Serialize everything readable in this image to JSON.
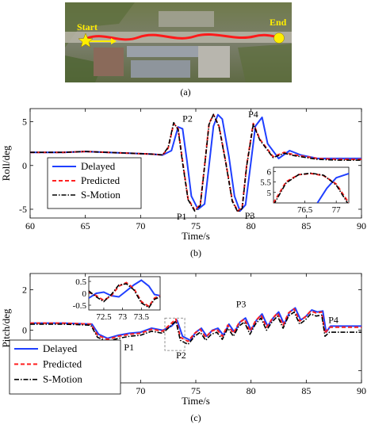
{
  "colors": {
    "delayed": "#1f3fff",
    "predicted": "#ff2020",
    "s_motion": "#000000",
    "route": "#ff1a1a",
    "marker": "#ffee00"
  },
  "panel_a": {
    "caption": "(a)",
    "start_label": "Start",
    "end_label": "End"
  },
  "chart_data": [
    {
      "type": "line",
      "caption": "(b)",
      "xlabel": "Time/s",
      "ylabel": "Roll/deg",
      "xlim": [
        60,
        90
      ],
      "ylim": [
        -6,
        6.5
      ],
      "xticks": [
        "60",
        "65",
        "70",
        "75",
        "80",
        "85",
        "90"
      ],
      "yticks": [
        "-5",
        "0",
        "5"
      ],
      "legend": {
        "placement": "lower-left",
        "entries": [
          "Delayed",
          "Predicted",
          "S-Motion"
        ]
      },
      "annotations": [
        "P1",
        "P2",
        "P3",
        "P4"
      ],
      "annotation_points": [
        [
          73.7,
          -5.1
        ],
        [
          75.8,
          5.0
        ],
        [
          79.0,
          -5.2
        ],
        [
          79.6,
          5.3
        ]
      ],
      "series": [
        {
          "name": "Delayed",
          "x": [
            60,
            63,
            65,
            67,
            69,
            71,
            72,
            72.8,
            73.4,
            73.8,
            74.2,
            74.6,
            75.2,
            75.8,
            76.2,
            76.6,
            77.0,
            77.4,
            78.0,
            78.5,
            79.0,
            79.5,
            80.0,
            80.4,
            81,
            81.5,
            82.5,
            83.5,
            84.5,
            86,
            88,
            90
          ],
          "y": [
            1.5,
            1.5,
            1.6,
            1.5,
            1.4,
            1.3,
            1.2,
            1.7,
            4.4,
            4.2,
            0.5,
            -3.5,
            -5.0,
            -4.4,
            0,
            4.5,
            5.8,
            5.3,
            1.0,
            -3.5,
            -5.2,
            -4.5,
            0.5,
            4.5,
            5.5,
            2.5,
            0.8,
            1.7,
            1.2,
            0.8,
            0.8,
            0.8
          ]
        },
        {
          "name": "Predicted",
          "x": [
            60,
            63,
            65,
            67,
            69,
            71,
            72,
            72.5,
            73.0,
            73.4,
            73.8,
            74.3,
            74.9,
            75.4,
            75.8,
            76.2,
            76.6,
            77.1,
            77.7,
            78.3,
            78.8,
            79.2,
            79.6,
            80.2,
            80.8,
            82,
            83,
            84,
            86,
            88,
            90
          ],
          "y": [
            1.5,
            1.5,
            1.6,
            1.5,
            1.4,
            1.3,
            1.2,
            2.0,
            4.8,
            4.2,
            0.5,
            -3.8,
            -5.1,
            -4.5,
            0,
            4.8,
            5.8,
            4.5,
            0.5,
            -4.0,
            -5.2,
            -4.8,
            0,
            4.8,
            3.0,
            1.0,
            1.5,
            1.2,
            0.8,
            0.7,
            0.7
          ]
        },
        {
          "name": "S-Motion",
          "x": [
            60,
            63,
            65,
            67,
            69,
            71,
            72,
            72.5,
            73.0,
            73.4,
            73.8,
            74.3,
            74.9,
            75.4,
            75.8,
            76.2,
            76.6,
            77.1,
            77.7,
            78.3,
            78.8,
            79.2,
            79.6,
            80.2,
            80.8,
            82,
            83,
            84,
            86,
            88,
            90
          ],
          "y": [
            1.5,
            1.5,
            1.6,
            1.5,
            1.4,
            1.3,
            1.2,
            2.1,
            4.9,
            4.1,
            0.3,
            -3.9,
            -5.2,
            -4.6,
            -0.1,
            4.7,
            5.85,
            4.4,
            0.4,
            -4.1,
            -5.3,
            -4.9,
            -0.1,
            4.7,
            2.9,
            0.9,
            1.4,
            1.1,
            0.7,
            0.6,
            0.6
          ]
        }
      ],
      "inset": {
        "xlim": [
          76.0,
          77.2
        ],
        "ylim": [
          4.5,
          6.2
        ],
        "xticks": [
          "76.5",
          "77"
        ],
        "yticks": [
          "5",
          "5.5",
          "6"
        ],
        "series": [
          {
            "name": "Delayed",
            "x": [
              76.7,
              76.85,
              77.0,
              77.2
            ],
            "y": [
              4.5,
              5.2,
              5.7,
              5.9
            ]
          },
          {
            "name": "Predicted",
            "x": [
              76.0,
              76.2,
              76.4,
              76.6,
              76.8,
              77.0,
              77.2
            ],
            "y": [
              4.5,
              5.5,
              5.85,
              5.9,
              5.8,
              5.4,
              4.5
            ]
          },
          {
            "name": "S-Motion",
            "x": [
              76.0,
              76.2,
              76.4,
              76.6,
              76.8,
              77.0,
              77.2
            ],
            "y": [
              4.4,
              5.45,
              5.85,
              5.92,
              5.82,
              5.35,
              4.4
            ]
          }
        ]
      }
    },
    {
      "type": "line",
      "caption": "(c)",
      "xlabel": "Time/s",
      "ylabel": "Pitch/deg",
      "xlim": [
        60,
        90
      ],
      "ylim": [
        -2.6,
        2.8
      ],
      "xticks": [
        "60",
        "65",
        "70",
        "75",
        "80",
        "85",
        "90"
      ],
      "yticks": [
        "-2",
        "0",
        "2"
      ],
      "legend": {
        "placement": "lower-left",
        "entries": [
          "Delayed",
          "Predicted",
          "S-Motion"
        ]
      },
      "annotations": [
        "P1",
        "P2",
        "P3",
        "P4"
      ],
      "annotation_points": [
        [
          68.5,
          -0.3
        ],
        [
          73.5,
          -0.6
        ],
        [
          79.5,
          0.9
        ],
        [
          87.0,
          0.2
        ]
      ],
      "series": [
        {
          "name": "Delayed",
          "x": [
            60,
            63,
            65.6,
            66.2,
            67,
            68,
            69,
            70,
            71,
            72,
            72.8,
            73.3,
            73.8,
            74.5,
            75,
            75.5,
            76,
            76.5,
            77,
            77.5,
            78,
            78.5,
            79,
            79.5,
            80,
            80.5,
            81,
            81.5,
            82,
            82.5,
            83,
            83.5,
            84,
            84.5,
            85,
            85.5,
            86,
            86.5,
            86.8,
            87.2,
            88,
            90
          ],
          "y": [
            0.35,
            0.35,
            0.3,
            -0.2,
            -0.4,
            -0.25,
            -0.15,
            -0.1,
            0.1,
            0.0,
            0.2,
            0.5,
            -0.3,
            -0.5,
            -0.1,
            0.1,
            -0.3,
            0.0,
            0.1,
            -0.25,
            0.3,
            -0.1,
            0.4,
            0.6,
            0.0,
            0.5,
            0.8,
            0.2,
            0.6,
            0.9,
            0.3,
            0.9,
            1.1,
            0.5,
            0.7,
            1.0,
            0.9,
            0.95,
            -0.1,
            0.2,
            0.2,
            0.2
          ]
        },
        {
          "name": "Predicted",
          "x": [
            60,
            63,
            65.5,
            66.1,
            67,
            68,
            69,
            70,
            71,
            72,
            72.7,
            73.2,
            73.6,
            74.3,
            74.9,
            75.4,
            75.9,
            76.4,
            76.9,
            77.4,
            77.9,
            78.4,
            78.9,
            79.4,
            79.9,
            80.4,
            80.9,
            81.4,
            81.9,
            82.4,
            82.9,
            83.4,
            83.9,
            84.4,
            84.9,
            85.4,
            85.9,
            86.4,
            86.7,
            87.1,
            88,
            90
          ],
          "y": [
            0.35,
            0.35,
            0.3,
            -0.25,
            -0.45,
            -0.3,
            -0.2,
            -0.15,
            0.05,
            -0.05,
            0.3,
            0.55,
            -0.35,
            -0.55,
            -0.15,
            0.05,
            -0.35,
            -0.05,
            0.05,
            -0.3,
            0.25,
            -0.15,
            0.35,
            0.55,
            -0.05,
            0.45,
            0.75,
            0.15,
            0.55,
            0.85,
            0.25,
            0.85,
            1.05,
            0.45,
            0.65,
            0.95,
            0.85,
            0.9,
            -0.15,
            0.15,
            0.15,
            0.15
          ]
        },
        {
          "name": "S-Motion",
          "x": [
            60,
            63,
            65.5,
            66.1,
            67,
            68,
            69,
            70,
            71,
            72,
            72.7,
            73.2,
            73.6,
            74.3,
            74.9,
            75.4,
            75.9,
            76.4,
            76.9,
            77.4,
            77.9,
            78.4,
            78.9,
            79.4,
            79.9,
            80.4,
            80.9,
            81.4,
            81.9,
            82.4,
            82.9,
            83.4,
            83.9,
            84.4,
            84.9,
            85.4,
            85.9,
            86.4,
            86.7,
            87.1,
            88,
            90
          ],
          "y": [
            0.3,
            0.3,
            0.25,
            -0.35,
            -0.55,
            -0.4,
            -0.3,
            -0.25,
            -0.05,
            -0.15,
            0.2,
            0.45,
            -0.5,
            -0.7,
            -0.3,
            -0.1,
            -0.5,
            -0.2,
            -0.1,
            -0.45,
            0.1,
            -0.3,
            0.2,
            0.4,
            -0.2,
            0.3,
            0.6,
            0.0,
            0.4,
            0.7,
            0.1,
            0.7,
            0.9,
            0.3,
            0.5,
            0.8,
            0.7,
            0.75,
            -0.3,
            -0.1,
            -0.1,
            -0.1
          ]
        }
      ],
      "inset": {
        "xlim": [
          72.1,
          74.0
        ],
        "ylim": [
          -0.7,
          0.7
        ],
        "xticks": [
          "72.5",
          "73",
          "73.5"
        ],
        "yticks": [
          "0.5",
          "0",
          "-0.5"
        ],
        "series": [
          {
            "name": "Delayed",
            "x": [
              72.1,
              72.3,
              72.5,
              72.7,
              72.9,
              73.1,
              73.3,
              73.5,
              73.7,
              73.85,
              74.0
            ],
            "y": [
              -0.2,
              0.0,
              0.05,
              -0.1,
              -0.15,
              0.1,
              0.35,
              0.55,
              0.3,
              -0.05,
              -0.1
            ]
          },
          {
            "name": "Predicted",
            "x": [
              72.1,
              72.3,
              72.5,
              72.7,
              72.9,
              73.1,
              73.3,
              73.5,
              73.7,
              73.85,
              74.0
            ],
            "y": [
              0.05,
              -0.1,
              -0.3,
              -0.1,
              0.3,
              0.45,
              0.2,
              -0.35,
              -0.55,
              -0.2,
              -0.1
            ]
          },
          {
            "name": "S-Motion",
            "x": [
              72.1,
              72.3,
              72.5,
              72.7,
              72.9,
              73.1,
              73.3,
              73.5,
              73.7,
              73.85,
              74.0
            ],
            "y": [
              0.1,
              -0.15,
              -0.35,
              -0.05,
              0.35,
              0.4,
              0.15,
              -0.4,
              -0.6,
              -0.25,
              -0.15
            ]
          }
        ]
      }
    }
  ]
}
